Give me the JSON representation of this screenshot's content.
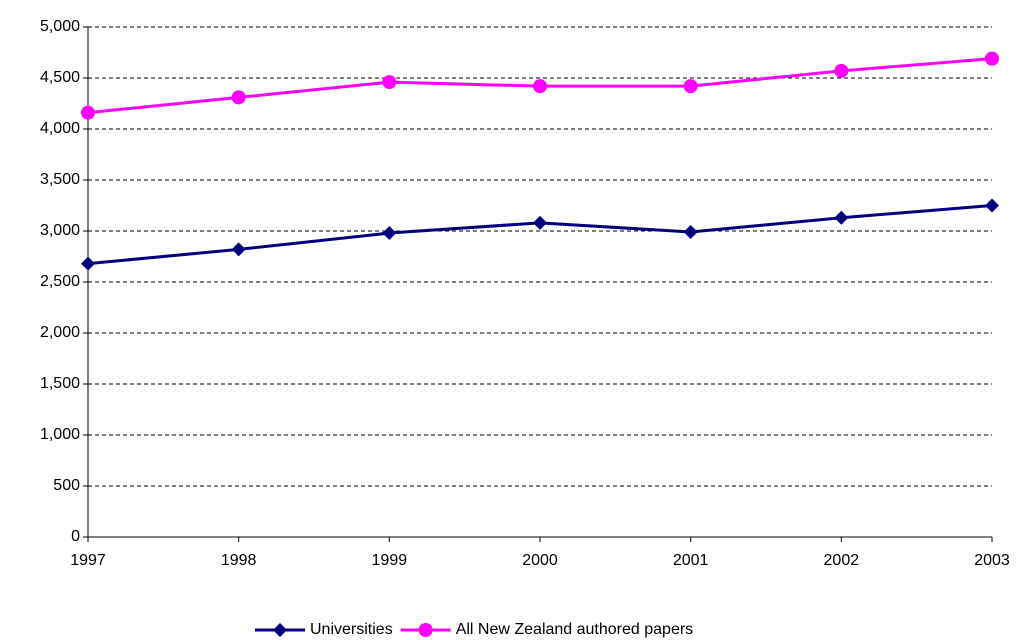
{
  "chart_data": {
    "type": "line",
    "categories": [
      "1997",
      "1998",
      "1999",
      "2000",
      "2001",
      "2002",
      "2003"
    ],
    "series": [
      {
        "name": "Universities",
        "color": "#000080",
        "marker": "diamond",
        "values": [
          2680,
          2820,
          2980,
          3080,
          2990,
          3130,
          3250
        ]
      },
      {
        "name": "All New Zealand authored papers",
        "color": "#ff00ff",
        "marker": "circle",
        "values": [
          4160,
          4310,
          4460,
          4420,
          4420,
          4570,
          4690
        ]
      }
    ],
    "ylim": [
      0,
      5000
    ],
    "yticks": [
      0,
      500,
      {
        "value": 1000,
        "label": "1,000"
      },
      {
        "value": 1500,
        "label": "1,500"
      },
      {
        "value": 2000,
        "label": "2,000"
      },
      {
        "value": 2500,
        "label": "2,500"
      },
      {
        "value": 3000,
        "label": "3,000"
      },
      {
        "value": 3500,
        "label": "3,500"
      },
      {
        "value": 4000,
        "label": "4,000"
      },
      {
        "value": 4500,
        "label": "4,500"
      },
      {
        "value": 5000,
        "label": "5,000"
      }
    ],
    "grid": true,
    "legend": "bottom"
  }
}
